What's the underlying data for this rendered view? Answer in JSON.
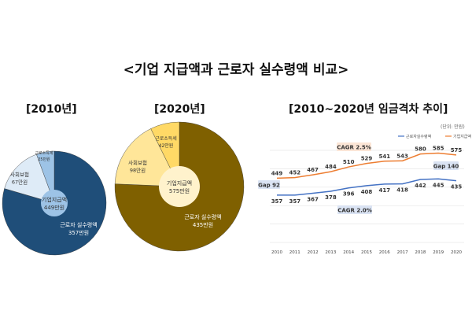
{
  "title": "<기업 지급액과 근로자 실수령액 비교>",
  "chart_data": [
    {
      "type": "pie",
      "title": "[2010년]",
      "center_label": [
        "기업지급액",
        "449만원"
      ],
      "slices": [
        {
          "label": "근로자 실수령액",
          "value_label": "357만원",
          "value": 357,
          "color": "#1f4e79",
          "text_color": "#ffffff"
        },
        {
          "label": "사회보험",
          "value_label": "67만원",
          "value": 67,
          "color": "#deebf7",
          "text_color": "#333333"
        },
        {
          "label": "근로소득세",
          "value_label": "25만원",
          "value": 25,
          "color": "#9dc3e6",
          "text_color": "#333333"
        }
      ],
      "inner_color": "#9dc3e6"
    },
    {
      "type": "pie",
      "title": "[2020년]",
      "center_label": [
        "기업지급액",
        "575만원"
      ],
      "slices": [
        {
          "label": "근로자 실수령액",
          "value_label": "435만원",
          "value": 435,
          "color": "#7f6000",
          "text_color": "#ffffff"
        },
        {
          "label": "사회보험",
          "value_label": "98만원",
          "value": 98,
          "color": "#ffe699",
          "text_color": "#333333"
        },
        {
          "label": "근로소득세",
          "value_label": "42만원",
          "value": 42,
          "color": "#ffd966",
          "text_color": "#333333"
        }
      ],
      "inner_color": "#fff2cc"
    },
    {
      "type": "line",
      "title": "[2010~2020년 임금격차 추이]",
      "unit_note": "(단위: 만원)",
      "categories": [
        "2010",
        "2011",
        "2012",
        "2013",
        "2014",
        "2015",
        "2016",
        "2017",
        "2018",
        "2019",
        "2020"
      ],
      "series": [
        {
          "name": "근로자실수령액",
          "color": "#4472c4",
          "values": [
            357,
            357,
            367,
            378,
            396,
            408,
            417,
            418,
            442,
            445,
            435
          ]
        },
        {
          "name": "기업지급액",
          "color": "#ed7d31",
          "values": [
            449,
            452,
            467,
            484,
            510,
            529,
            541,
            543,
            580,
            585,
            575
          ]
        }
      ],
      "annotations": [
        {
          "text": "CAGR 2.5%",
          "bg": "#fbe5d6"
        },
        {
          "text": "CAGR 2.0%",
          "bg": "#dae3f3"
        },
        {
          "text": "Gap 92",
          "bg": "#dae3f3"
        },
        {
          "text": "Gap 140",
          "bg": "#dae3f3"
        }
      ],
      "ylim": [
        100,
        600
      ],
      "grid": true,
      "legend": "top-right"
    }
  ]
}
